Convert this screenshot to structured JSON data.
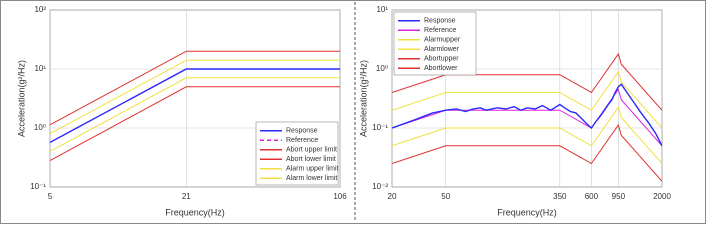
{
  "chart_data": [
    {
      "type": "line",
      "xlabel": "Frequency(Hz)",
      "ylabel": "Acceleration(g²/Hz)",
      "x": [
        5,
        21,
        106
      ],
      "xlog": true,
      "ylog": true,
      "grid": true,
      "legend": "lower right",
      "xlim": [
        5,
        106
      ],
      "xticks": [
        5,
        21,
        106
      ],
      "ylim": [
        0.1,
        100
      ],
      "yticks": [
        {
          "value": 0.1,
          "label": "10⁻¹"
        },
        {
          "value": 1,
          "label": "10⁰"
        },
        {
          "value": 10,
          "label": "10¹"
        },
        {
          "value": 100,
          "label": "10²"
        }
      ],
      "series": [
        {
          "name": "Response",
          "color": "#2a2aff",
          "values": [
            0.57,
            10,
            10
          ]
        },
        {
          "name": "Reference",
          "color": "#e020e0",
          "style": "dashed",
          "values": [
            0.57,
            10,
            10
          ]
        },
        {
          "name": "Abort upper limit",
          "color": "#e03030",
          "values": [
            1.13,
            20,
            20
          ]
        },
        {
          "name": "Abort lower limit",
          "color": "#e03030",
          "values": [
            0.28,
            5,
            5
          ]
        },
        {
          "name": "Alarm upper limit",
          "color": "#f0e040",
          "values": [
            0.8,
            14.1,
            14.1
          ]
        },
        {
          "name": "Alarm lower limit",
          "color": "#f0e040",
          "values": [
            0.4,
            7.1,
            7.1
          ]
        }
      ]
    },
    {
      "type": "line",
      "xlabel": "Frequency(Hz)",
      "ylabel": "Acceleration(g²/Hz)",
      "x": [
        20,
        50,
        350,
        600,
        950,
        1000,
        2000
      ],
      "xlog": true,
      "ylog": true,
      "grid": true,
      "legend": "upper left",
      "xlim": [
        20,
        2000
      ],
      "xticks": [
        20,
        50,
        350,
        600,
        950,
        2000
      ],
      "ylim": [
        0.01,
        10
      ],
      "yticks": [
        {
          "value": 0.01,
          "label": "10⁻²"
        },
        {
          "value": 0.1,
          "label": "10⁻¹"
        },
        {
          "value": 1,
          "label": "10⁰"
        },
        {
          "value": 10,
          "label": "10¹"
        }
      ],
      "series": [
        {
          "name": "Response",
          "color": "#2a2aff",
          "x": [
            20,
            25,
            30,
            35,
            40,
            45,
            50,
            60,
            70,
            80,
            90,
            100,
            120,
            140,
            160,
            180,
            200,
            230,
            260,
            300,
            350,
            380,
            420,
            460,
            500,
            550,
            600,
            650,
            700,
            750,
            800,
            850,
            900,
            950,
            1000,
            1100,
            1200,
            1400,
            1600,
            1800,
            2000
          ],
          "values": [
            0.1,
            0.12,
            0.14,
            0.16,
            0.18,
            0.19,
            0.2,
            0.21,
            0.19,
            0.21,
            0.22,
            0.2,
            0.22,
            0.21,
            0.23,
            0.2,
            0.22,
            0.21,
            0.24,
            0.2,
            0.25,
            0.22,
            0.19,
            0.18,
            0.15,
            0.12,
            0.1,
            0.13,
            0.16,
            0.2,
            0.25,
            0.3,
            0.4,
            0.5,
            0.55,
            0.4,
            0.3,
            0.18,
            0.12,
            0.08,
            0.05
          ]
        },
        {
          "name": "Reference",
          "color": "#e020e0",
          "values": [
            0.1,
            0.2,
            0.2,
            0.1,
            0.45,
            0.3,
            0.05
          ]
        },
        {
          "name": "Alarmupper",
          "color": "#f0e040",
          "values": [
            0.2,
            0.4,
            0.4,
            0.2,
            0.9,
            0.6,
            0.1
          ]
        },
        {
          "name": "Alarmlower",
          "color": "#f0e040",
          "values": [
            0.05,
            0.1,
            0.1,
            0.05,
            0.225,
            0.15,
            0.025
          ]
        },
        {
          "name": "Abortupper",
          "color": "#e03030",
          "values": [
            0.4,
            0.8,
            0.8,
            0.4,
            1.8,
            1.2,
            0.2
          ]
        },
        {
          "name": "Abortlower",
          "color": "#e03030",
          "values": [
            0.025,
            0.05,
            0.05,
            0.025,
            0.1125,
            0.075,
            0.0125
          ]
        }
      ]
    }
  ]
}
